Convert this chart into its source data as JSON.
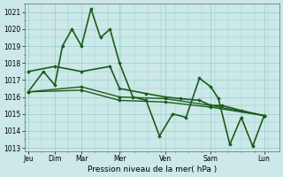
{
  "xlabel": "Pression niveau de la mer( hPa )",
  "bg_color": "#cce8e8",
  "grid_color": "#99cccc",
  "line_color": "#1a5c1a",
  "ylim": [
    1012.8,
    1021.5
  ],
  "yticks": [
    1013,
    1014,
    1015,
    1016,
    1017,
    1018,
    1019,
    1020,
    1021
  ],
  "xtick_positions": [
    0.0,
    1.4,
    2.8,
    4.8,
    7.2,
    9.6,
    12.4
  ],
  "xtick_labels": [
    "Jeu",
    "Dim",
    "Mar",
    "Mer",
    "Ven",
    "Sam",
    "Lun"
  ],
  "xlim": [
    -0.2,
    13.2
  ],
  "series": [
    {
      "x": [
        0.0,
        0.8,
        1.4,
        1.8,
        2.3,
        2.8,
        3.3,
        3.8,
        4.3,
        4.8,
        5.5,
        6.2,
        6.9,
        7.6,
        8.3,
        9.0,
        9.6,
        10.0,
        10.6,
        11.2,
        11.8,
        12.4
      ],
      "y": [
        1016.3,
        1017.5,
        1016.7,
        1019.0,
        1020.0,
        1019.0,
        1021.2,
        1019.5,
        1020.0,
        1018.0,
        1016.0,
        1015.8,
        1013.7,
        1015.0,
        1014.8,
        1017.1,
        1016.6,
        1015.9,
        1013.2,
        1014.8,
        1013.1,
        1014.9
      ],
      "lw": 1.2
    },
    {
      "x": [
        0.0,
        1.4,
        2.8,
        4.3,
        4.8,
        6.2,
        7.2,
        8.0,
        9.0,
        9.6,
        10.2,
        11.2,
        12.4
      ],
      "y": [
        1017.5,
        1017.8,
        1017.5,
        1017.8,
        1016.5,
        1016.2,
        1016.0,
        1015.9,
        1015.8,
        1015.5,
        1015.5,
        1015.2,
        1014.9
      ],
      "lw": 1.2
    },
    {
      "x": [
        0.0,
        2.8,
        4.8,
        7.2,
        9.6,
        12.4
      ],
      "y": [
        1016.3,
        1016.6,
        1016.0,
        1015.9,
        1015.5,
        1014.9
      ],
      "lw": 1.0
    },
    {
      "x": [
        0.0,
        2.8,
        4.8,
        7.2,
        9.6,
        12.4
      ],
      "y": [
        1016.3,
        1016.4,
        1015.8,
        1015.7,
        1015.4,
        1014.9
      ],
      "lw": 1.0
    }
  ]
}
